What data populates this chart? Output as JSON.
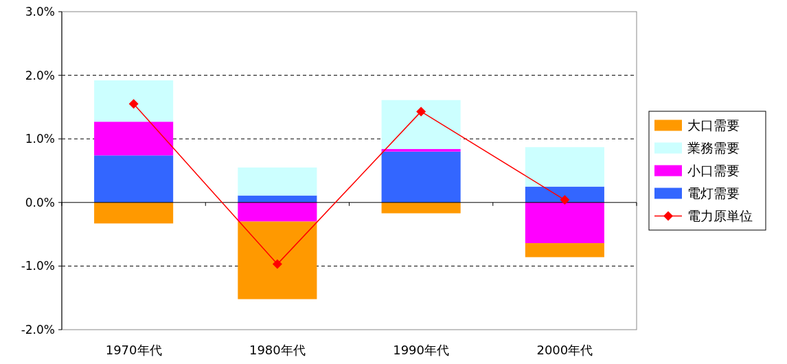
{
  "chart_data": {
    "type": "bar",
    "stacked": true,
    "categories": [
      "1970年代",
      "1980年代",
      "1990年代",
      "2000年代"
    ],
    "series": [
      {
        "name": "電灯需要",
        "color": "#3366ff",
        "values": [
          0.74,
          0.11,
          0.8,
          0.25
        ]
      },
      {
        "name": "小口需要",
        "color": "#ff00ff",
        "values": [
          0.53,
          -0.3,
          0.04,
          -0.64
        ]
      },
      {
        "name": "業務需要",
        "color": "#ccffff",
        "values": [
          0.65,
          0.44,
          0.77,
          0.62
        ]
      },
      {
        "name": "大口需要",
        "color": "#ff9900",
        "values": [
          -0.33,
          -1.22,
          -0.17,
          -0.22
        ]
      },
      {
        "name": "電力原単位",
        "type": "line",
        "color": "#ff0000",
        "marker": "diamond",
        "line_style": "solid",
        "values": [
          1.55,
          -0.97,
          1.43,
          0.04
        ]
      }
    ],
    "ylim": [
      -2,
      3
    ],
    "yticks": [
      {
        "value": -2,
        "label": "-2.0%"
      },
      {
        "value": -1,
        "label": "-1.0%"
      },
      {
        "value": 0,
        "label": "0.0%"
      },
      {
        "value": 1,
        "label": "1.0%"
      },
      {
        "value": 2,
        "label": "2.0%"
      },
      {
        "value": 3,
        "label": "3.0%"
      }
    ],
    "grid": "y",
    "legend": "right"
  }
}
